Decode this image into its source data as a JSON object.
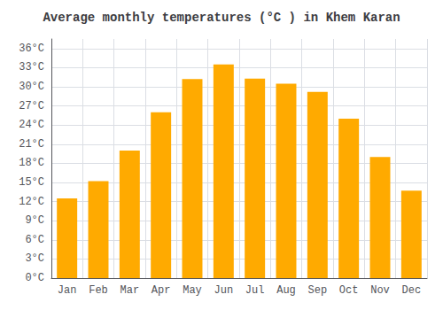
{
  "chart_data": {
    "type": "bar",
    "title": "Average monthly temperatures (°C ) in Khem Karan",
    "categories": [
      "Jan",
      "Feb",
      "Mar",
      "Apr",
      "May",
      "Jun",
      "Jul",
      "Aug",
      "Sep",
      "Oct",
      "Nov",
      "Dec"
    ],
    "values": [
      12.5,
      15.2,
      20.0,
      26.0,
      31.2,
      33.5,
      31.3,
      30.5,
      29.2,
      25.0,
      19.0,
      13.7
    ],
    "color": "#FFAA00",
    "ylim": [
      0,
      37.5
    ],
    "yticks": [
      {
        "value": 0,
        "label": "0°C"
      },
      {
        "value": 3,
        "label": "3°C"
      },
      {
        "value": 6,
        "label": "6°C"
      },
      {
        "value": 9,
        "label": "9°C"
      },
      {
        "value": 12,
        "label": "12°C"
      },
      {
        "value": 15,
        "label": "15°C"
      },
      {
        "value": 18,
        "label": "18°C"
      },
      {
        "value": 21,
        "label": "21°C"
      },
      {
        "value": 24,
        "label": "24°C"
      },
      {
        "value": 27,
        "label": "27°C"
      },
      {
        "value": 30,
        "label": "30°C"
      },
      {
        "value": 33,
        "label": "33°C"
      },
      {
        "value": 36,
        "label": "36°C"
      }
    ],
    "grid": true
  }
}
